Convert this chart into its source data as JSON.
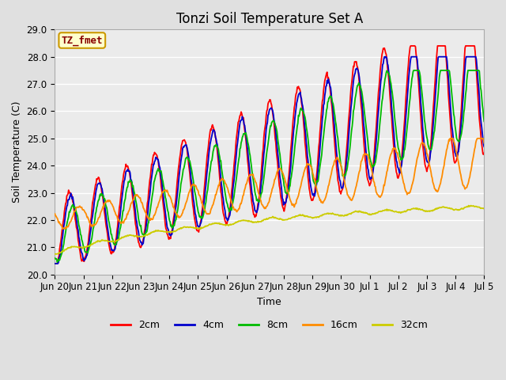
{
  "title": "Tonzi Soil Temperature Set A",
  "xlabel": "Time",
  "ylabel": "Soil Temperature (C)",
  "ylim": [
    20.0,
    29.0
  ],
  "yticks": [
    20.0,
    21.0,
    22.0,
    23.0,
    24.0,
    25.0,
    26.0,
    27.0,
    28.0,
    29.0
  ],
  "colors": {
    "2cm": "#FF0000",
    "4cm": "#0000CC",
    "8cm": "#00BB00",
    "16cm": "#FF8C00",
    "32cm": "#CCCC00"
  },
  "legend_label": "TZ_fmet",
  "legend_box_color": "#FFFFCC",
  "legend_box_edge": "#CC9900",
  "background_color": "#E0E0E0",
  "plot_bg_color": "#EBEBEB",
  "grid_color": "#FFFFFF",
  "linewidth": 1.3,
  "title_fontsize": 12,
  "axis_fontsize": 9,
  "tick_fontsize": 8.5,
  "legend_fontsize": 9,
  "x_tick_labels": [
    "Jun 20",
    "Jun 21",
    "Jun 22",
    "Jun 23",
    "Jun 24",
    "Jun 25",
    "Jun 26",
    "Jun 27",
    "Jun 28",
    "Jun 29",
    "Jun 30",
    "Jul 1",
    "Jul 2",
    "Jul 3",
    "Jul 4",
    "Jul 5"
  ]
}
